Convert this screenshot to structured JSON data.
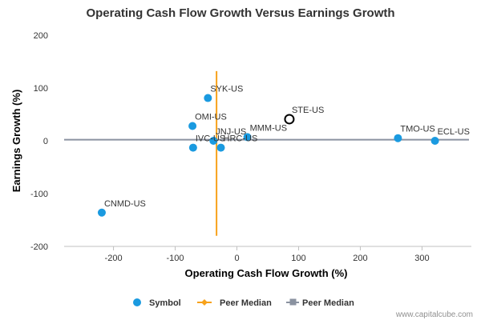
{
  "colors": {
    "symbol": "#1a9ae0",
    "highlight_stroke": "#000000",
    "peer_median_x": "#f7a21b",
    "peer_median_y": "#8a92a0",
    "grid": "#dddddd"
  },
  "credit": "www.capitalcube.com",
  "legend": [
    {
      "label": "Symbol",
      "icon": "circle-marker",
      "color": "#1a9ae0"
    },
    {
      "label": "Peer Median",
      "icon": "line-diamond-marker",
      "color": "#f7a21b"
    },
    {
      "label": "Peer Median",
      "icon": "line-square-marker",
      "color": "#8a92a0"
    }
  ],
  "chart_data": {
    "type": "scatter",
    "title": "Operating Cash Flow Growth Versus Earnings Growth",
    "xlabel": "Operating Cash Flow Growth (%)",
    "ylabel": "Earnings Growth (%)",
    "xlim": [
      -280,
      380
    ],
    "ylim": [
      -200,
      200
    ],
    "xticks": [
      -200,
      -100,
      0,
      100,
      200,
      300
    ],
    "yticks": [
      -200,
      -100,
      0,
      100,
      200
    ],
    "grid": {
      "x": false,
      "y": false
    },
    "legend_position": "bottom-center",
    "points": [
      {
        "label": "SYK-US",
        "x": -47,
        "y": 81
      },
      {
        "label": "OMI-US",
        "x": -72,
        "y": 28
      },
      {
        "label": "JNJ-US",
        "x": -38,
        "y": 0
      },
      {
        "label": "MMM-US",
        "x": 17,
        "y": 7
      },
      {
        "label": "IVC-US",
        "x": -71,
        "y": -13
      },
      {
        "label": "HRC-US",
        "x": -26,
        "y": -13
      },
      {
        "label": "STE-US",
        "x": 85,
        "y": 41,
        "highlight": true
      },
      {
        "label": "TMO-US",
        "x": 261,
        "y": 5
      },
      {
        "label": "ECL-US",
        "x": 321,
        "y": 0
      },
      {
        "label": "CNMD-US",
        "x": -219,
        "y": -136
      }
    ],
    "peer_median_x": {
      "value": -33,
      "y_range": [
        -180,
        132
      ]
    },
    "peer_median_y": {
      "value": 2
    }
  }
}
